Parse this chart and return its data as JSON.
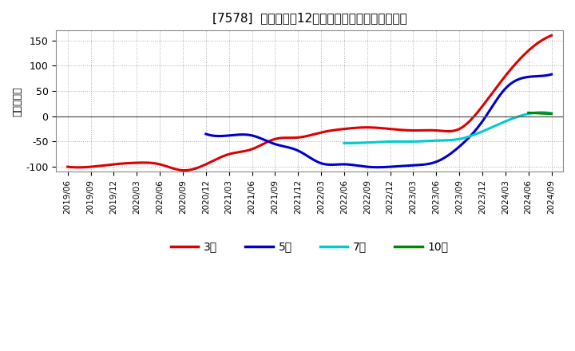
{
  "title": "[7578]  当期純利益12か月移動合計の平均値の推移",
  "ylabel": "（百万円）",
  "bg_color": "#ffffff",
  "plot_bg_color": "#ffffff",
  "grid_color": "#999999",
  "ylim": [
    -110,
    170
  ],
  "yticks": [
    -100,
    -50,
    0,
    50,
    100,
    150
  ],
  "series": {
    "3年": {
      "color": "#dd0000",
      "data": [
        [
          "2019/06",
          -100
        ],
        [
          "2019/09",
          -100
        ],
        [
          "2019/12",
          -95
        ],
        [
          "2020/03",
          -92
        ],
        [
          "2020/06",
          -95
        ],
        [
          "2020/09",
          -107
        ],
        [
          "2020/12",
          -95
        ],
        [
          "2021/03",
          -75
        ],
        [
          "2021/06",
          -65
        ],
        [
          "2021/09",
          -45
        ],
        [
          "2021/12",
          -42
        ],
        [
          "2022/03",
          -32
        ],
        [
          "2022/06",
          -25
        ],
        [
          "2022/09",
          -22
        ],
        [
          "2022/12",
          -25
        ],
        [
          "2023/03",
          -28
        ],
        [
          "2023/06",
          -28
        ],
        [
          "2023/09",
          -25
        ],
        [
          "2023/12",
          20
        ],
        [
          "2024/03",
          80
        ],
        [
          "2024/06",
          130
        ],
        [
          "2024/09",
          160
        ]
      ]
    },
    "5年": {
      "color": "#0000cc",
      "data": [
        [
          "2020/12",
          -35
        ],
        [
          "2021/03",
          -38
        ],
        [
          "2021/06",
          -38
        ],
        [
          "2021/09",
          -55
        ],
        [
          "2021/12",
          -68
        ],
        [
          "2022/03",
          -93
        ],
        [
          "2022/06",
          -95
        ],
        [
          "2022/09",
          -100
        ],
        [
          "2022/12",
          -100
        ],
        [
          "2023/03",
          -97
        ],
        [
          "2023/06",
          -90
        ],
        [
          "2023/09",
          -60
        ],
        [
          "2023/12",
          -10
        ],
        [
          "2024/03",
          55
        ],
        [
          "2024/06",
          78
        ],
        [
          "2024/09",
          83
        ]
      ]
    },
    "7年": {
      "color": "#00cccc",
      "data": [
        [
          "2022/06",
          -53
        ],
        [
          "2022/09",
          -52
        ],
        [
          "2022/12",
          -50
        ],
        [
          "2023/03",
          -50
        ],
        [
          "2023/06",
          -48
        ],
        [
          "2023/09",
          -45
        ],
        [
          "2023/12",
          -30
        ],
        [
          "2024/03",
          -10
        ],
        [
          "2024/06",
          5
        ],
        [
          "2024/09",
          6
        ]
      ]
    },
    "10年": {
      "color": "#008800",
      "data": [
        [
          "2024/06",
          7
        ],
        [
          "2024/09",
          5
        ]
      ]
    }
  },
  "xtick_labels": [
    "2019/06",
    "2019/09",
    "2019/12",
    "2020/03",
    "2020/06",
    "2020/09",
    "2020/12",
    "2021/03",
    "2021/06",
    "2021/09",
    "2021/12",
    "2022/03",
    "2022/06",
    "2022/09",
    "2022/12",
    "2023/03",
    "2023/06",
    "2023/09",
    "2023/12",
    "2024/03",
    "2024/06",
    "2024/09"
  ],
  "legend_labels": [
    "3年",
    "5年",
    "7年",
    "10年"
  ],
  "legend_colors": [
    "#dd0000",
    "#0000cc",
    "#00cccc",
    "#008800"
  ]
}
